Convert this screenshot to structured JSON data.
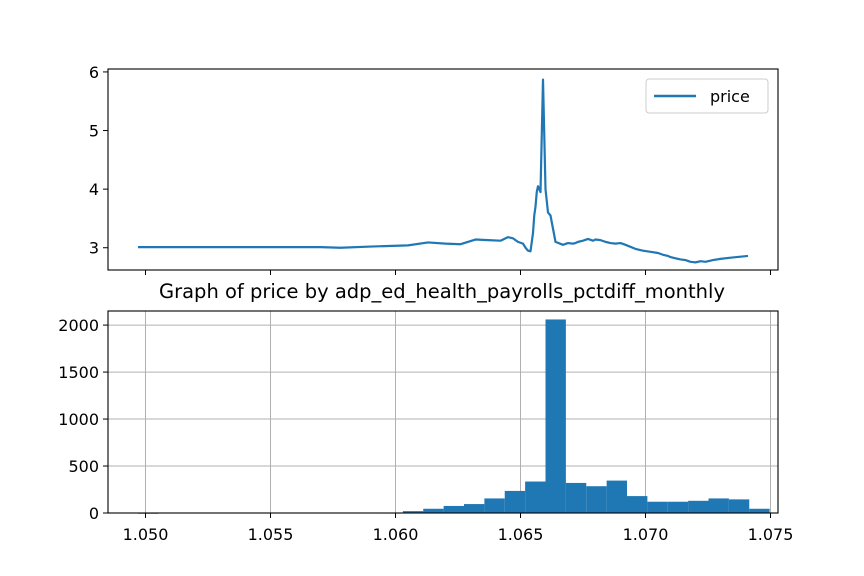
{
  "chart_data": [
    {
      "type": "line",
      "title": "",
      "xlabel": "",
      "ylabel": "",
      "xlim": [
        1.0485,
        1.0753
      ],
      "ylim": [
        2.62,
        6.05
      ],
      "xticks": [
        1.05,
        1.055,
        1.06,
        1.065,
        1.07,
        1.075
      ],
      "xtick_labels_visible": false,
      "yticks": [
        3,
        4,
        5,
        6
      ],
      "ytick_labels": [
        "3",
        "4",
        "5",
        "6"
      ],
      "grid": false,
      "legend": {
        "position": "upper right",
        "entries": [
          "price"
        ]
      },
      "series": [
        {
          "name": "price",
          "color": "#1f77b4",
          "x": [
            1.0497,
            1.052,
            1.055,
            1.057,
            1.0578,
            1.059,
            1.0605,
            1.0613,
            1.062,
            1.0626,
            1.0632,
            1.0637,
            1.0642,
            1.0645,
            1.0647,
            1.0649,
            1.0651,
            1.0652,
            1.0653,
            1.0654,
            1.0655,
            1.06555,
            1.0656,
            1.06565,
            1.0657,
            1.0658,
            1.0659,
            1.066,
            1.0661,
            1.0662,
            1.0664,
            1.0667,
            1.0669,
            1.0671,
            1.0672,
            1.0673,
            1.0675,
            1.0677,
            1.0679,
            1.068,
            1.0682,
            1.0684,
            1.0686,
            1.0688,
            1.069,
            1.0692,
            1.0696,
            1.0699,
            1.0702,
            1.0705,
            1.0707,
            1.0709,
            1.071,
            1.0712,
            1.0714,
            1.0716,
            1.0718,
            1.072,
            1.0722,
            1.0724,
            1.0727,
            1.073,
            1.0734,
            1.0741
          ],
          "y": [
            3.01,
            3.01,
            3.01,
            3.01,
            3.0,
            3.02,
            3.04,
            3.09,
            3.07,
            3.06,
            3.14,
            3.13,
            3.12,
            3.18,
            3.16,
            3.1,
            3.07,
            3.0,
            2.95,
            2.94,
            3.25,
            3.55,
            3.7,
            3.95,
            4.05,
            3.95,
            5.87,
            4.0,
            3.6,
            3.55,
            3.1,
            3.05,
            3.08,
            3.07,
            3.08,
            3.1,
            3.12,
            3.15,
            3.12,
            3.14,
            3.13,
            3.1,
            3.08,
            3.07,
            3.08,
            3.05,
            2.98,
            2.95,
            2.93,
            2.91,
            2.88,
            2.86,
            2.84,
            2.82,
            2.8,
            2.79,
            2.76,
            2.75,
            2.77,
            2.76,
            2.79,
            2.81,
            2.83,
            2.86
          ]
        }
      ]
    },
    {
      "type": "bar",
      "subtype": "histogram",
      "title": "Graph of price by adp_ed_health_payrolls_pctdiff_monthly",
      "xlabel": "",
      "ylabel": "",
      "xlim": [
        1.0485,
        1.0753
      ],
      "ylim": [
        0,
        2150
      ],
      "xticks": [
        1.05,
        1.055,
        1.06,
        1.065,
        1.07,
        1.075
      ],
      "xtick_labels": [
        "1.050",
        "1.055",
        "1.060",
        "1.065",
        "1.070",
        "1.075"
      ],
      "yticks": [
        0,
        500,
        1000,
        1500,
        2000
      ],
      "ytick_labels": [
        "0",
        "500",
        "1000",
        "1500",
        "2000"
      ],
      "grid": true,
      "color": "#1f77b4",
      "bin_start": 1.0497,
      "bin_width": 0.000815,
      "values": [
        1,
        0,
        0,
        0,
        0,
        0,
        0,
        0,
        0,
        0,
        0,
        0,
        3,
        20,
        45,
        75,
        95,
        155,
        235,
        335,
        2060,
        320,
        285,
        345,
        180,
        120,
        120,
        130,
        155,
        145,
        45
      ]
    }
  ]
}
